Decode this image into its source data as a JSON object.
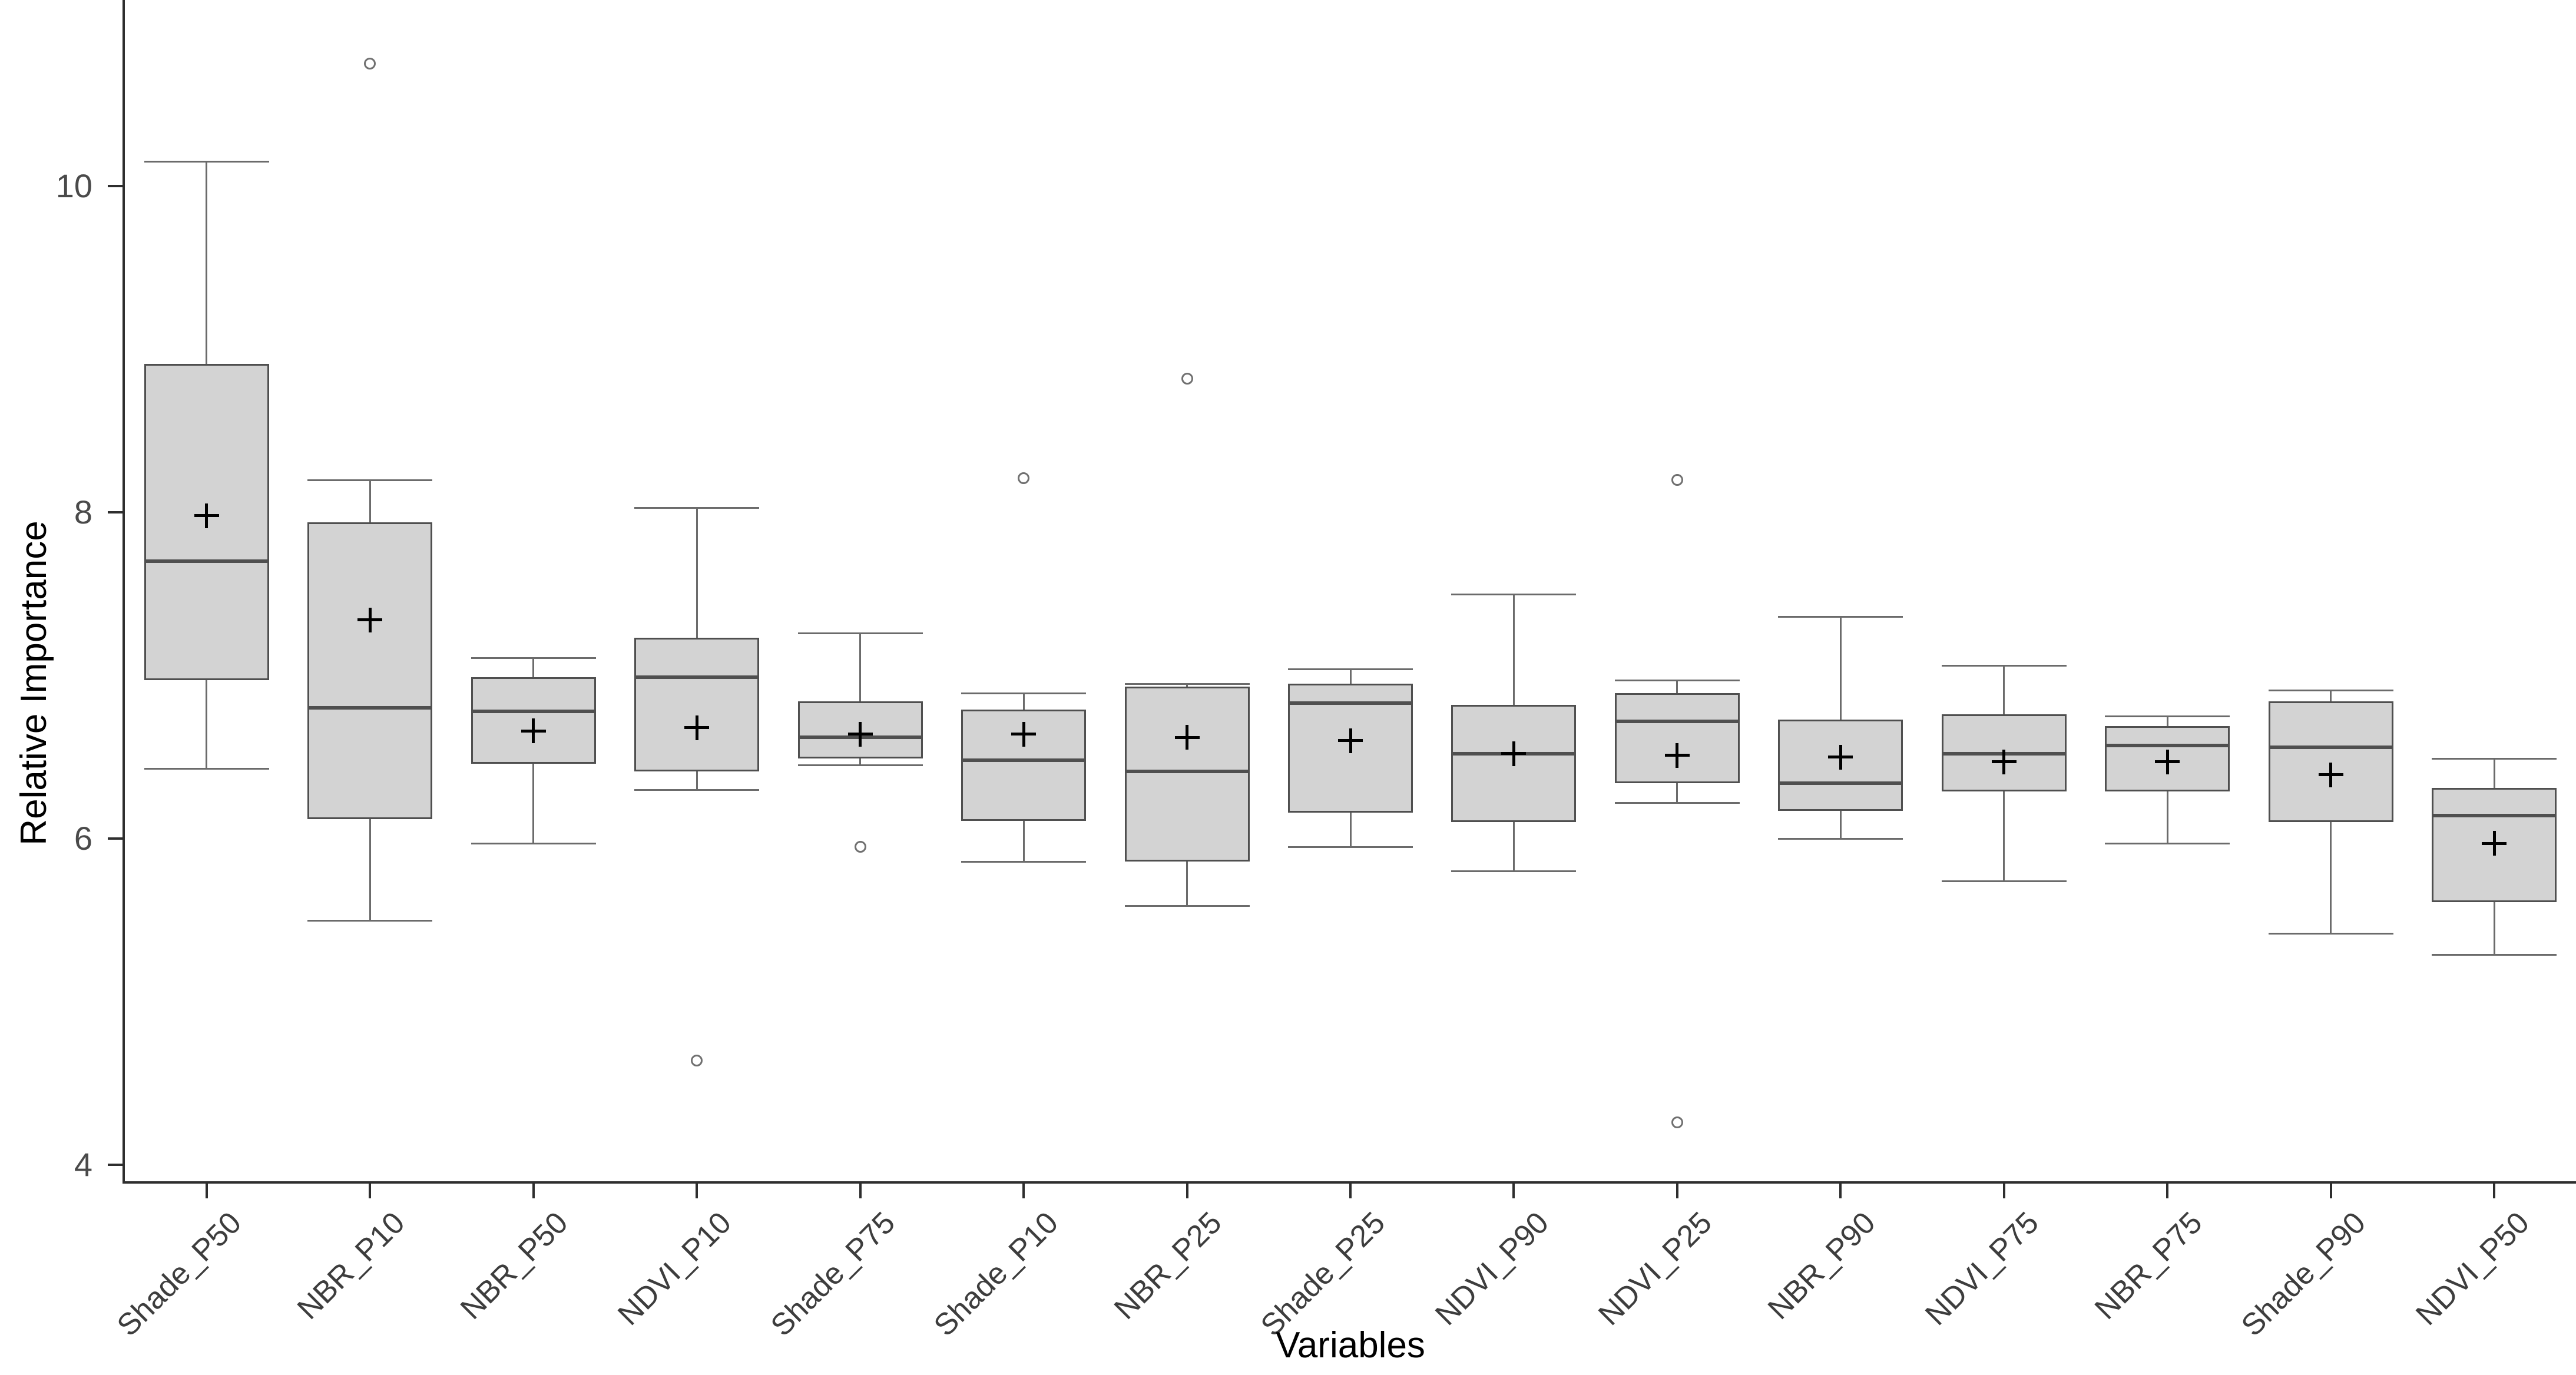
{
  "chart_data": {
    "type": "boxplot",
    "title": "",
    "xlabel": "Variables",
    "ylabel": "Relative Importance",
    "y_ticks": [
      10,
      8,
      6,
      4
    ],
    "ylim": [
      3.9,
      11.1
    ],
    "grid": false,
    "legend_position": "none",
    "mean_marker": "+",
    "outlier_marker": "open-circle",
    "categories": [
      "Shade_P50",
      "NBR_P10",
      "NBR_P50",
      "NDVI_P10",
      "Shade_P75",
      "Shade_P10",
      "NBR_P25",
      "Shade_P25",
      "NDVI_P90",
      "NDVI_P25",
      "NBR_P90",
      "NDVI_P75",
      "NBR_P75",
      "Shade_P90",
      "NDVI_P50"
    ],
    "boxes": [
      {
        "label": "Shade_P50",
        "low": 6.43,
        "q1": 6.97,
        "median": 7.7,
        "mean": 7.98,
        "q3": 8.91,
        "high": 10.15,
        "outliers": []
      },
      {
        "label": "NBR_P10",
        "low": 5.5,
        "q1": 6.12,
        "median": 6.8,
        "mean": 7.34,
        "q3": 7.94,
        "high": 8.2,
        "outliers": [
          10.75
        ]
      },
      {
        "label": "NBR_P50",
        "low": 5.97,
        "q1": 6.46,
        "median": 6.78,
        "mean": 6.66,
        "q3": 6.99,
        "high": 7.11,
        "outliers": []
      },
      {
        "label": "NDVI_P10",
        "low": 6.3,
        "q1": 6.41,
        "median": 6.99,
        "mean": 6.68,
        "q3": 7.23,
        "high": 8.03,
        "outliers": [
          4.64
        ]
      },
      {
        "label": "Shade_P75",
        "low": 6.45,
        "q1": 6.49,
        "median": 6.62,
        "mean": 6.64,
        "q3": 6.84,
        "high": 7.26,
        "outliers": [
          5.95
        ]
      },
      {
        "label": "Shade_P10",
        "low": 5.86,
        "q1": 6.11,
        "median": 6.48,
        "mean": 6.64,
        "q3": 6.79,
        "high": 6.89,
        "outliers": [
          8.21
        ]
      },
      {
        "label": "NBR_P25",
        "low": 5.59,
        "q1": 5.86,
        "median": 6.41,
        "mean": 6.62,
        "q3": 6.93,
        "high": 6.95,
        "outliers": [
          8.82
        ]
      },
      {
        "label": "Shade_P25",
        "low": 5.95,
        "q1": 6.16,
        "median": 6.83,
        "mean": 6.6,
        "q3": 6.95,
        "high": 7.04,
        "outliers": []
      },
      {
        "label": "NDVI_P90",
        "low": 5.8,
        "q1": 6.1,
        "median": 6.52,
        "mean": 6.52,
        "q3": 6.82,
        "high": 7.5,
        "outliers": []
      },
      {
        "label": "NDVI_P25",
        "low": 6.22,
        "q1": 6.34,
        "median": 6.72,
        "mean": 6.51,
        "q3": 6.89,
        "high": 6.97,
        "outliers": [
          8.2,
          4.26
        ]
      },
      {
        "label": "NBR_P90",
        "low": 6.0,
        "q1": 6.17,
        "median": 6.34,
        "mean": 6.5,
        "q3": 6.73,
        "high": 7.36,
        "outliers": []
      },
      {
        "label": "NDVI_P75",
        "low": 5.74,
        "q1": 6.29,
        "median": 6.52,
        "mean": 6.47,
        "q3": 6.76,
        "high": 7.06,
        "outliers": []
      },
      {
        "label": "NBR_P75",
        "low": 5.97,
        "q1": 6.29,
        "median": 6.57,
        "mean": 6.47,
        "q3": 6.69,
        "high": 6.75,
        "outliers": []
      },
      {
        "label": "Shade_P90",
        "low": 5.42,
        "q1": 6.1,
        "median": 6.56,
        "mean": 6.39,
        "q3": 6.84,
        "high": 6.91,
        "outliers": []
      },
      {
        "label": "NDVI_P50",
        "low": 5.29,
        "q1": 5.61,
        "median": 6.14,
        "mean": 5.97,
        "q3": 6.31,
        "high": 6.49,
        "outliers": []
      }
    ],
    "colors": {
      "box_fill": "#d3d3d3",
      "box_border": "#4f4f4f",
      "whisker": "#6b6b6b",
      "axis": "#2e2e2e",
      "tick_label": "#4a4a4a",
      "mean_marker": "#000000",
      "outlier": "#707070",
      "background": "#ffffff"
    }
  }
}
